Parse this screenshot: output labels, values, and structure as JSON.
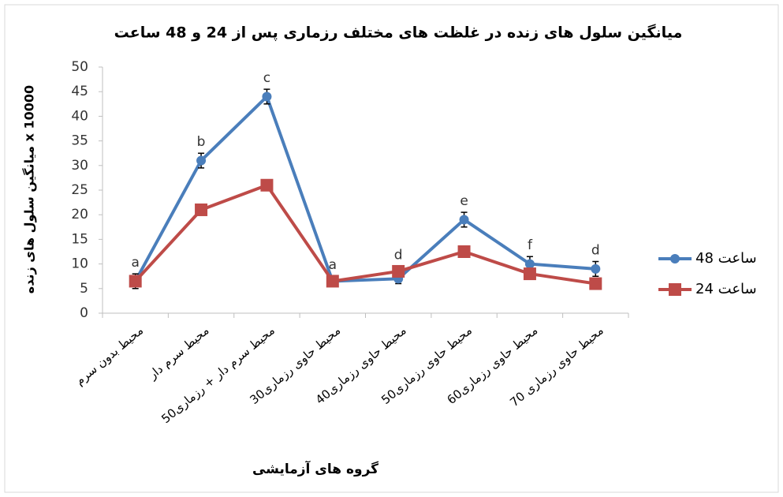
{
  "chart_data": {
    "type": "line",
    "title": "میانگین سلول های زنده در غلظت های مختلف رزماری پس از 24 و 48 ساعت",
    "x_label": "گروه های آزمایشی",
    "y_label": "میانگین سلول های زنده x 10000",
    "categories": [
      "محیط بدون سرم",
      "محیط سرم دار",
      "محیط سرم دار + رزماری50",
      "محیط حاوی رزماری30",
      "محیط حاوی رزماری40",
      "محیط حاوی رزماری50",
      "محیط حاوی رزماری60",
      "محیط حاوی رزماری 70"
    ],
    "series": [
      {
        "name": "48 ساعت",
        "color": "#4a7ebb",
        "marker": "circle",
        "values": [
          6.5,
          31,
          44,
          6.5,
          7,
          19,
          10,
          9
        ],
        "errors": [
          1.5,
          1.5,
          1.5,
          1,
          1,
          1.5,
          1.5,
          1.5
        ]
      },
      {
        "name": "24 ساعت",
        "color": "#be4b48",
        "marker": "square",
        "values": [
          6.5,
          21,
          26,
          6.5,
          8.5,
          12.5,
          8,
          6
        ]
      }
    ],
    "annotations": [
      "a",
      "b",
      "c",
      "a",
      "d",
      "e",
      "f",
      "d"
    ],
    "ylim": [
      0,
      50
    ],
    "yticks": [
      0,
      5,
      10,
      15,
      20,
      25,
      30,
      35,
      40,
      45,
      50
    ],
    "legend": "right"
  }
}
